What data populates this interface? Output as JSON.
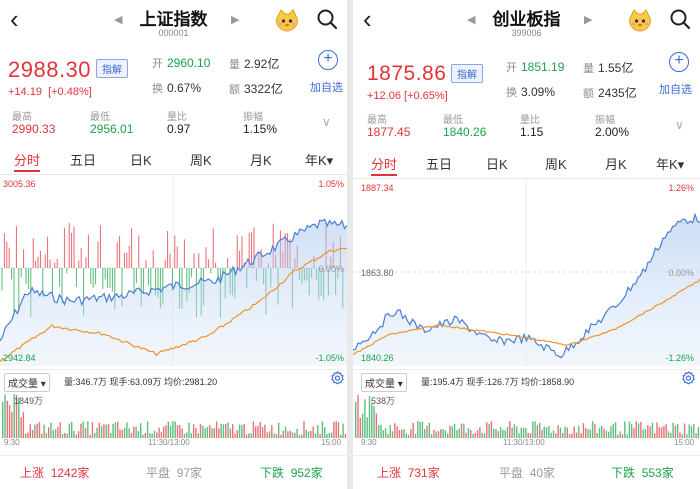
{
  "left": {
    "nav": {
      "back": "<",
      "title": "上证指数",
      "code": "000001"
    },
    "price": "2988.30",
    "badge": "指解",
    "change": "+14.19",
    "change_pct": "[+0.48%]",
    "open_label": "开",
    "open": "2960.10",
    "turnover_label": "换",
    "turnover": "0.67%",
    "volume_label": "量",
    "volume": "2.92亿",
    "amount_label": "额",
    "amount": "3322亿",
    "add_label": "加自选",
    "high_label": "最高",
    "high": "2990.33",
    "low_label": "最低",
    "low": "2956.01",
    "ratio_label": "量比",
    "ratio": "0.97",
    "amp_label": "振幅",
    "amp": "1.15%",
    "tabs": [
      "分时",
      "五日",
      "日K",
      "周K",
      "月K",
      "年K▾"
    ],
    "chart_top_left": "3005.36",
    "chart_top_right": "1.05%",
    "chart_bottom_left": "2942.84",
    "chart_bottom_right": "-1.05%",
    "chart_mid_right": "0.00%",
    "vol_select": "成交量 ▾",
    "vol_info": "量:346.7万  现手:63.09万  均价:2981.20",
    "vol_max": "1849万",
    "time_start": "9:30",
    "time_mid": "11:30/13:00",
    "time_end": "15:00",
    "up_label": "上涨",
    "up": "1242家",
    "flat_label": "平盘",
    "flat": "97家",
    "down_label": "下跌",
    "down": "952家"
  },
  "right": {
    "nav": {
      "back": "<",
      "title": "创业板指",
      "code": "399006"
    },
    "price": "1875.86",
    "badge": "指解",
    "change": "+12.06",
    "change_pct": "[+0.65%]",
    "open_label": "开",
    "open": "1851.19",
    "turnover_label": "换",
    "turnover": "3.09%",
    "volume_label": "量",
    "volume": "1.55亿",
    "amount_label": "额",
    "amount": "2435亿",
    "add_label": "加自选",
    "high_label": "最高",
    "high": "1877.45",
    "low_label": "最低",
    "low": "1840.26",
    "ratio_label": "量比",
    "ratio": "1.15",
    "amp_label": "振幅",
    "amp": "2.00%",
    "tabs": [
      "分时",
      "五日",
      "日K",
      "周K",
      "月K",
      "年K▾"
    ],
    "chart_top_left": "1887.34",
    "chart_top_right": "1.26%",
    "chart_mid_left": "1863.80",
    "chart_mid_right": "0.00%",
    "chart_bottom_left": "1840.26",
    "chart_bottom_right": "-1.26%",
    "vol_select": "成交量 ▾",
    "vol_info": "量:195.4万  现手:126.7万  均价:1858.90",
    "vol_max": "538万",
    "time_start": "9:30",
    "time_mid": "11:30/13:00",
    "time_end": "15:00",
    "up_label": "上涨",
    "up": "731家",
    "flat_label": "平盘",
    "flat": "40家",
    "down_label": "下跌",
    "down": "553家"
  },
  "colors": {
    "up": "#e0343a",
    "down": "#1aa34a",
    "accent": "#3d6ad6",
    "price_line": "#4a7fd4",
    "avg_line": "#f0922e"
  },
  "icons": {
    "back": "chevron-left-icon",
    "mascot": "mascot-icon",
    "search": "search-icon",
    "add": "plus-circle-icon",
    "gear": "gear-icon",
    "expand": "chevron-down-icon"
  }
}
